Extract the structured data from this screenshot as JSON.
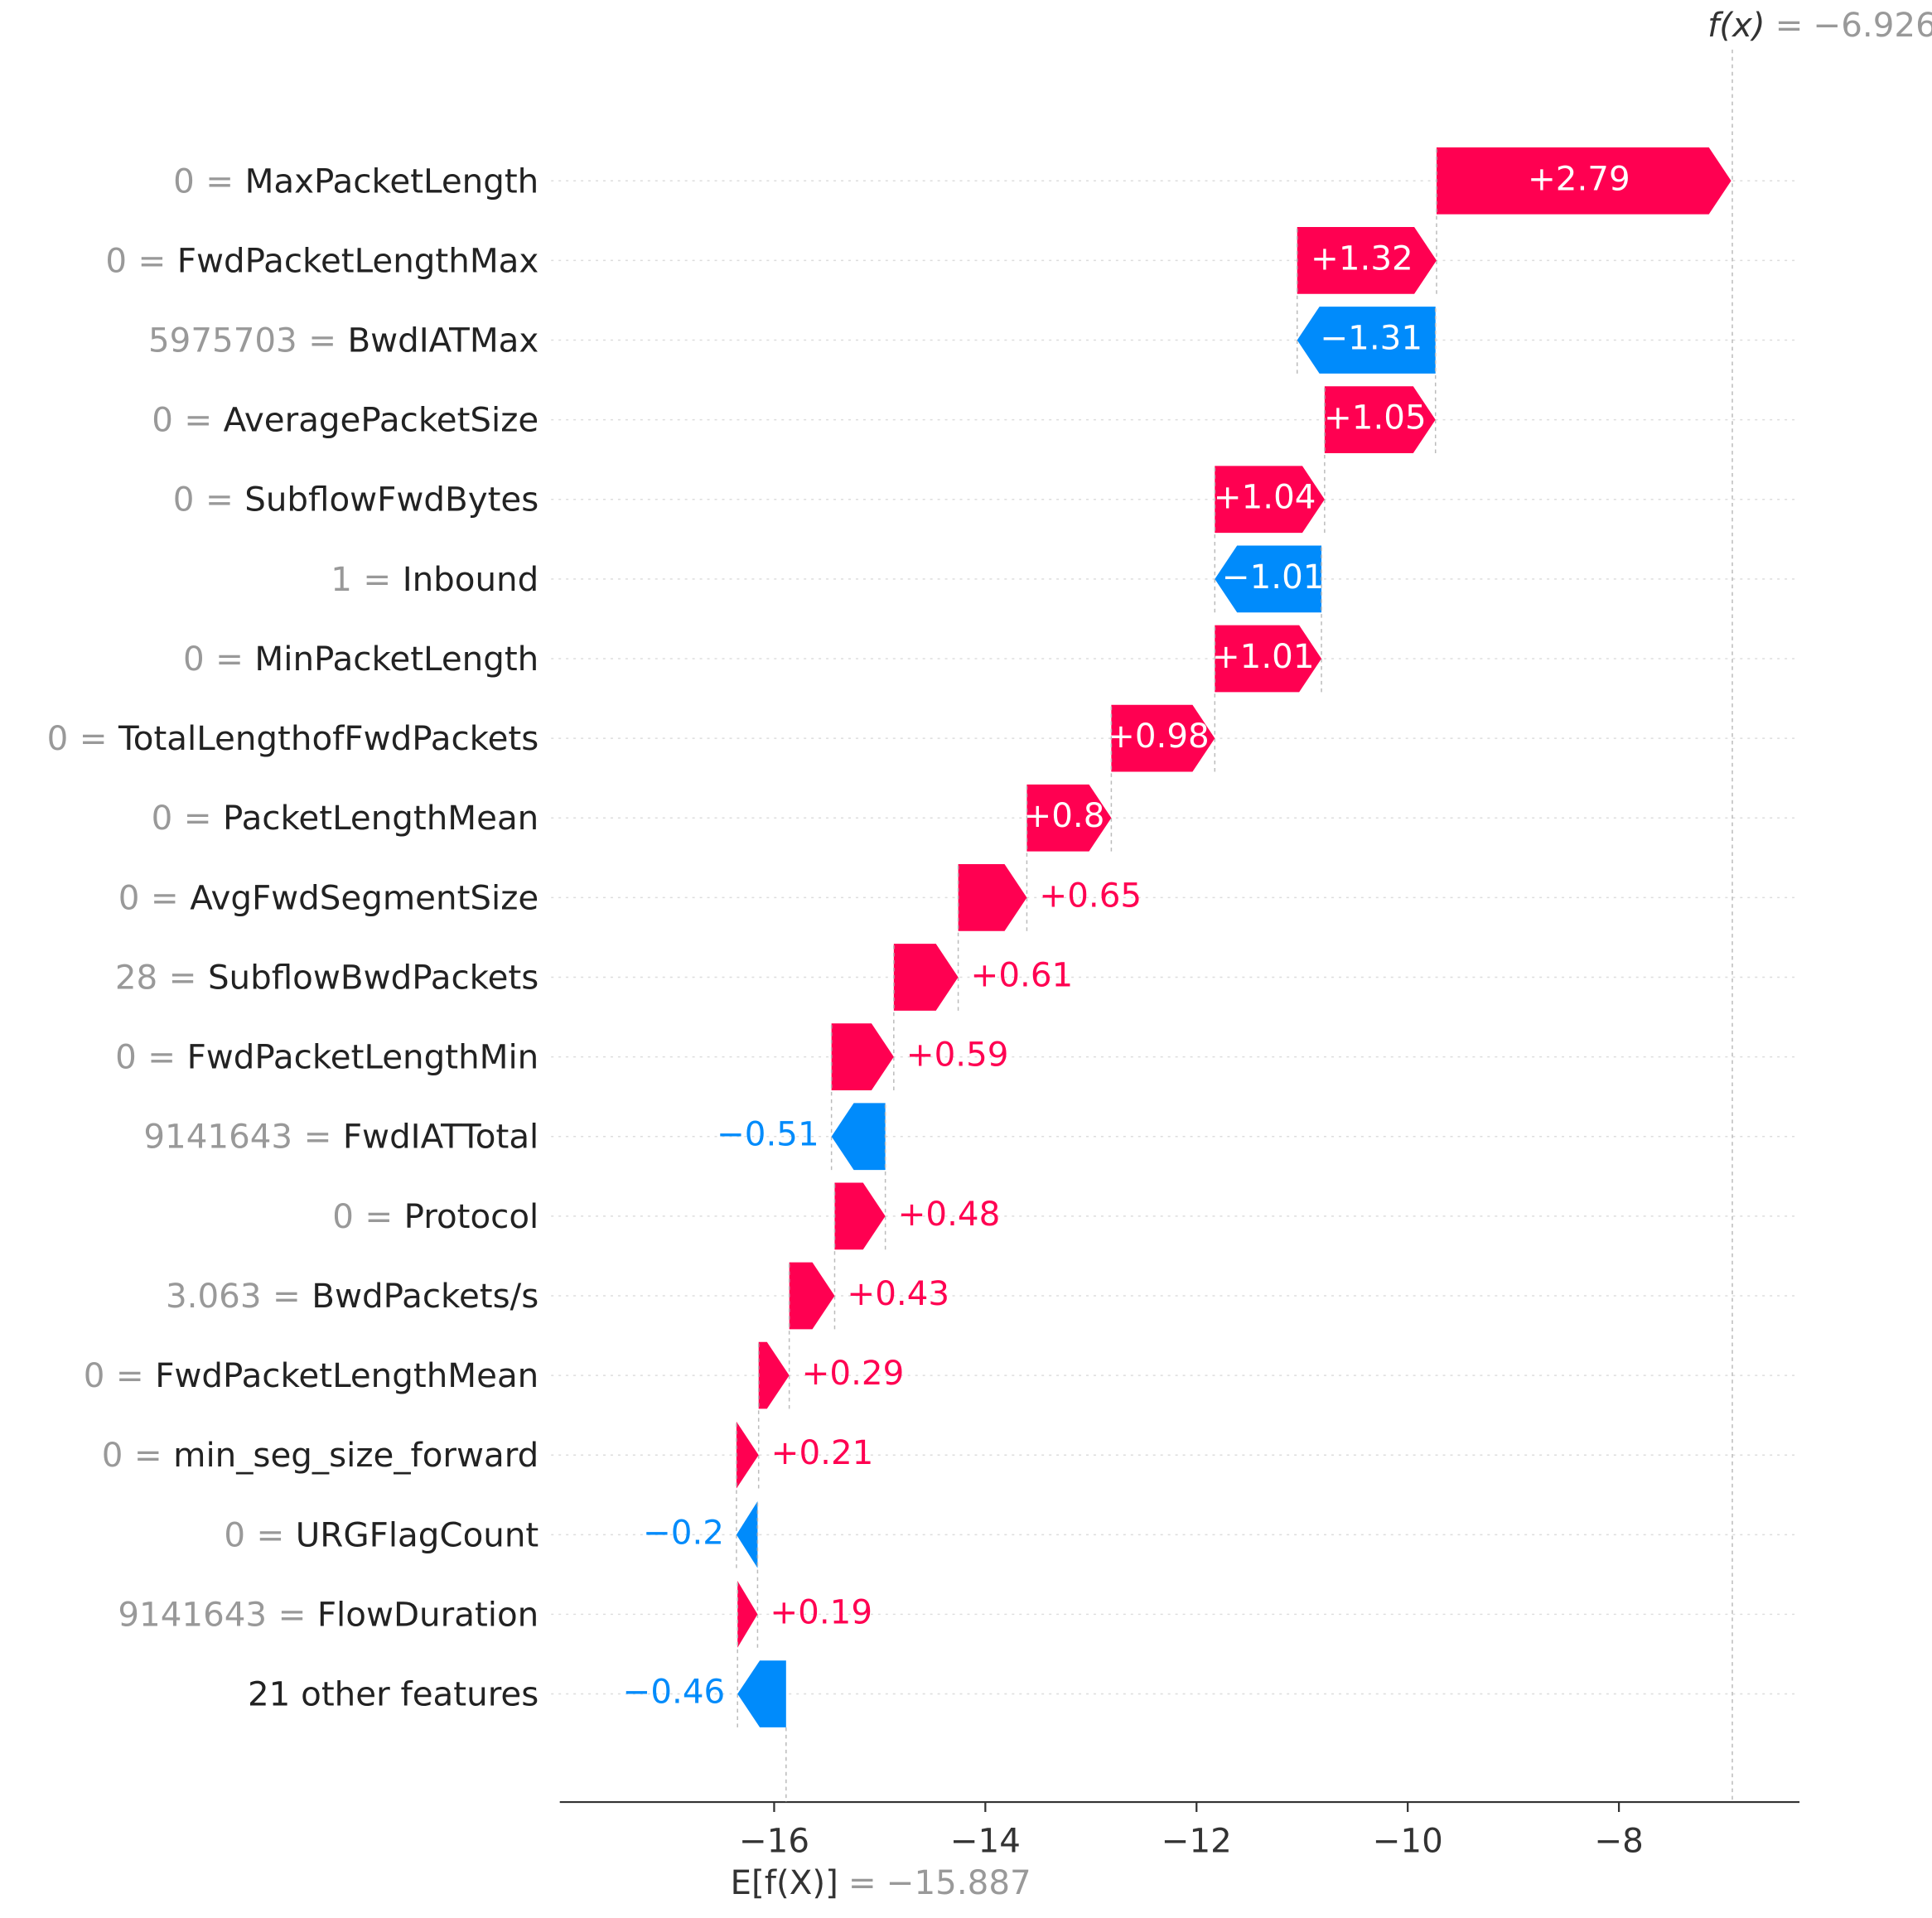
{
  "chart_data": {
    "type": "waterfall",
    "categories": [
      "MaxPacketLength",
      "FwdPacketLengthMax",
      "BwdIATMax",
      "AveragePacketSize",
      "SubflowFwdBytes",
      "Inbound",
      "MinPacketLength",
      "TotalLengthofFwdPackets",
      "PacketLengthMean",
      "AvgFwdSegmentSize",
      "SubflowBwdPackets",
      "FwdPacketLengthMin",
      "FwdIATTotal",
      "Protocol",
      "BwdPackets/s",
      "FwdPacketLengthMean",
      "min_seg_size_forward",
      "URGFlagCount",
      "FlowDuration",
      "21 other features"
    ],
    "feature_values": [
      "0",
      "0",
      "5975703",
      "0",
      "0",
      "1",
      "0",
      "0",
      "0",
      "0",
      "28",
      "0",
      "9141643",
      "0",
      "3.063",
      "0",
      "0",
      "0",
      "9141643",
      null
    ],
    "separator": "=",
    "values": [
      2.79,
      1.32,
      -1.31,
      1.05,
      1.04,
      -1.01,
      1.01,
      0.98,
      0.8,
      0.65,
      0.61,
      0.59,
      -0.51,
      0.48,
      0.43,
      0.29,
      0.21,
      -0.2,
      0.19,
      -0.46
    ],
    "value_labels": [
      "+2.79",
      "+1.32",
      "−1.31",
      "+1.05",
      "+1.04",
      "−1.01",
      "+1.01",
      "+0.98",
      "+0.8",
      "+0.65",
      "+0.61",
      "+0.59",
      "−0.51",
      "+0.48",
      "+0.43",
      "+0.29",
      "+0.21",
      "−0.2",
      "+0.19",
      "−0.46"
    ],
    "positive_color": "#ff0051",
    "negative_color": "#008bfb",
    "base_label": "E[f(X)]",
    "base_value": {
      "value": -15.887,
      "label": "−15.887"
    },
    "output_label": "f(x)",
    "output_value": {
      "value": -6.926,
      "label": "−6.926"
    },
    "xlim": [
      -18.03,
      -6.29
    ],
    "xticks": [
      {
        "value": -16,
        "label": "−16"
      },
      {
        "value": -14,
        "label": "−14"
      },
      {
        "value": -12,
        "label": "−12"
      },
      {
        "value": -10,
        "label": "−10"
      },
      {
        "value": -8,
        "label": "−8"
      }
    ],
    "grid": true
  }
}
